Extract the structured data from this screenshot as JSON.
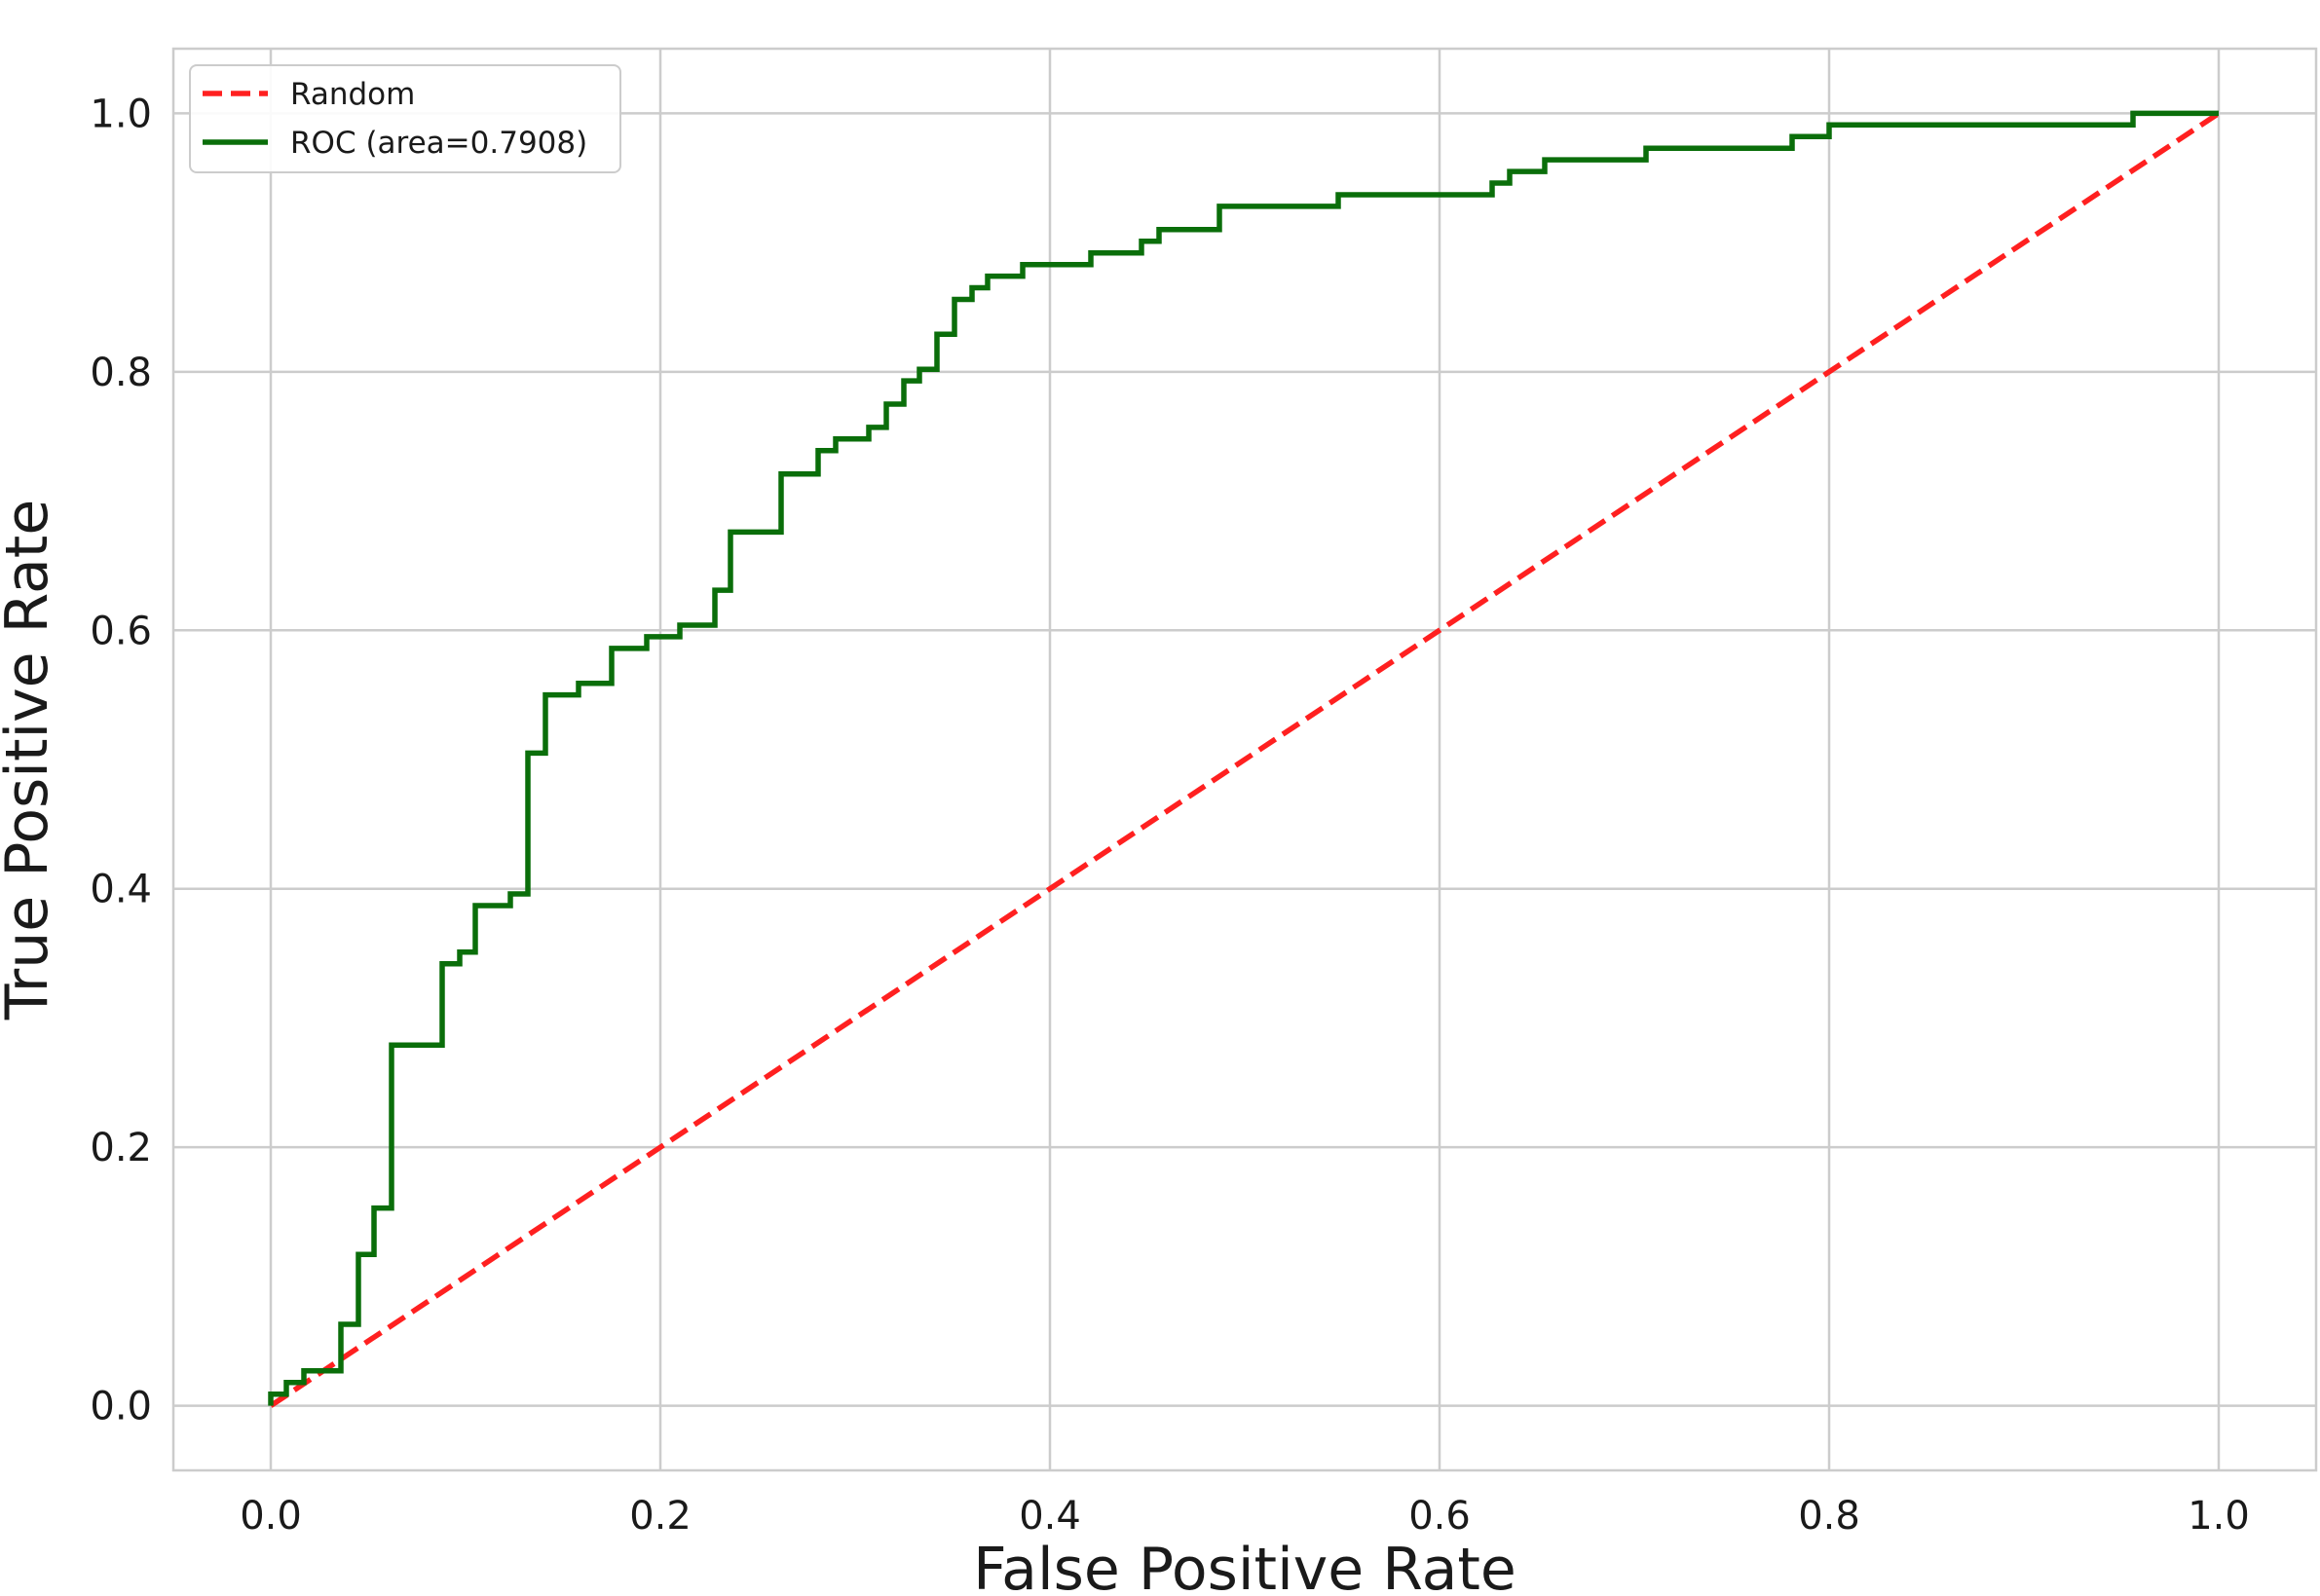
{
  "chart_data": {
    "type": "line",
    "xlabel": "False Positive Rate",
    "ylabel": "True Positive Rate",
    "xlim": [
      -0.05,
      1.05
    ],
    "ylim": [
      -0.05,
      1.05
    ],
    "xticks": [
      0.0,
      0.2,
      0.4,
      0.6,
      0.8,
      1.0
    ],
    "yticks": [
      0.0,
      0.2,
      0.4,
      0.6,
      0.8,
      1.0
    ],
    "xtick_labels": [
      "0.0",
      "0.2",
      "0.4",
      "0.6",
      "0.8",
      "1.0"
    ],
    "ytick_labels": [
      "0.0",
      "0.2",
      "0.4",
      "0.6",
      "0.8",
      "1.0"
    ],
    "grid": true,
    "legend_position": "top-left",
    "series": [
      {
        "name": "Random",
        "style": "dashed",
        "color": "#ff2020",
        "x": [
          0.0,
          1.0
        ],
        "y": [
          0.0,
          1.0
        ]
      },
      {
        "name": "ROC (area=0.7908)",
        "style": "solid",
        "color": "#0a6e0a",
        "x": [
          0.0,
          0.0,
          0.008,
          0.008,
          0.017,
          0.017,
          0.026,
          0.026,
          0.036,
          0.036,
          0.036,
          0.045,
          0.045,
          0.053,
          0.053,
          0.062,
          0.062,
          0.088,
          0.088,
          0.097,
          0.097,
          0.105,
          0.105,
          0.123,
          0.123,
          0.132,
          0.132,
          0.141,
          0.141,
          0.158,
          0.158,
          0.175,
          0.175,
          0.193,
          0.193,
          0.21,
          0.21,
          0.228,
          0.228,
          0.236,
          0.236,
          0.262,
          0.262,
          0.281,
          0.281,
          0.29,
          0.29,
          0.307,
          0.307,
          0.316,
          0.316,
          0.325,
          0.325,
          0.333,
          0.333,
          0.342,
          0.342,
          0.351,
          0.351,
          0.36,
          0.36,
          0.368,
          0.368,
          0.386,
          0.386,
          0.395,
          0.395,
          0.421,
          0.421,
          0.447,
          0.447,
          0.456,
          0.456,
          0.487,
          0.487,
          0.548,
          0.548,
          0.627,
          0.627,
          0.636,
          0.636,
          0.654,
          0.654,
          0.706,
          0.706,
          0.781,
          0.781,
          0.8,
          0.8,
          0.956,
          0.956,
          1.0
        ],
        "y": [
          0.0,
          0.009,
          0.009,
          0.018,
          0.018,
          0.027,
          0.027,
          0.027,
          0.027,
          0.063,
          0.063,
          0.063,
          0.117,
          0.117,
          0.153,
          0.153,
          0.279,
          0.279,
          0.342,
          0.342,
          0.351,
          0.351,
          0.387,
          0.387,
          0.396,
          0.396,
          0.505,
          0.505,
          0.55,
          0.55,
          0.559,
          0.559,
          0.586,
          0.586,
          0.595,
          0.595,
          0.604,
          0.604,
          0.631,
          0.631,
          0.676,
          0.676,
          0.721,
          0.721,
          0.739,
          0.739,
          0.748,
          0.748,
          0.757,
          0.757,
          0.775,
          0.775,
          0.793,
          0.793,
          0.802,
          0.802,
          0.829,
          0.829,
          0.856,
          0.856,
          0.865,
          0.865,
          0.874,
          0.874,
          0.883,
          0.883,
          0.883,
          0.883,
          0.892,
          0.892,
          0.901,
          0.901,
          0.91,
          0.91,
          0.928,
          0.928,
          0.937,
          0.937,
          0.946,
          0.946,
          0.955,
          0.955,
          0.964,
          0.964,
          0.973,
          0.973,
          0.982,
          0.982,
          0.991,
          0.991,
          1.0,
          1.0
        ]
      }
    ]
  }
}
